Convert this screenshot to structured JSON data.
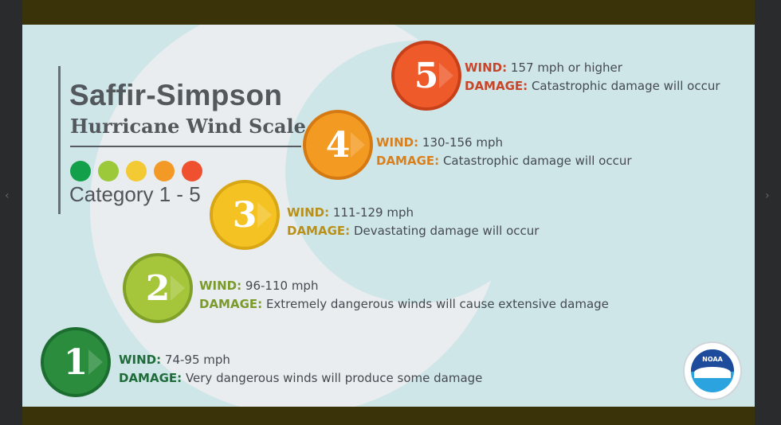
{
  "title": "Saffir-Simpson",
  "subtitle": "Hurricane Wind Scale",
  "category_range": "Category 1 - 5",
  "legend_colors": [
    "#13a04a",
    "#9cc93a",
    "#f3c934",
    "#f39a26",
    "#ef5030"
  ],
  "wind_label": "WIND:",
  "damage_label": "DAMAGE:",
  "categories": [
    {
      "number": "1",
      "wind": "74-95 mph",
      "damage": "Very dangerous winds will produce some damage",
      "color": "#2a8c3c",
      "border": "#1c6e30",
      "label_color": "#1f6b3a"
    },
    {
      "number": "2",
      "wind": "96-110 mph",
      "damage": "Extremely dangerous winds will cause extensive damage",
      "color": "#a5c63a",
      "border": "#7fa12a",
      "label_color": "#7a9a2a"
    },
    {
      "number": "3",
      "wind": "111-129 mph",
      "damage": "Devastating damage will occur",
      "color": "#f4c323",
      "border": "#d9a615",
      "label_color": "#b8901a"
    },
    {
      "number": "4",
      "wind": "130-156 mph",
      "damage": "Catastrophic damage will occur",
      "color": "#f39a22",
      "border": "#d57a12",
      "label_color": "#d97f1c"
    },
    {
      "number": "5",
      "wind": "157 mph or higher",
      "damage": "Catastrophic damage will occur",
      "color": "#ee5a2a",
      "border": "#c8401a",
      "label_color": "#c9452a"
    }
  ],
  "logo": {
    "text": "NOAA"
  }
}
